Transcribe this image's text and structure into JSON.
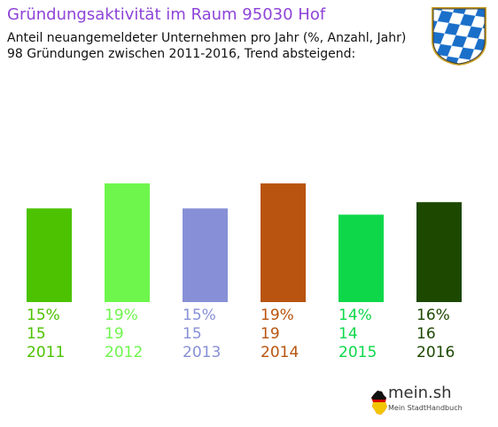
{
  "header": {
    "title": "Gründungsaktivität im Raum 95030 Hof",
    "subtitle_line1": "Anteil neuangemeldeter Unternehmen pro Jahr (%, Anzahl, Jahr)",
    "subtitle_line2": "98 Gründungen zwischen 2011-2016, Trend absteigend:"
  },
  "chart_data": {
    "type": "bar",
    "categories": [
      "2011",
      "2012",
      "2013",
      "2014",
      "2015",
      "2016"
    ],
    "values": [
      15,
      19,
      15,
      19,
      14,
      16
    ],
    "percent_labels": [
      "15%",
      "19%",
      "15%",
      "19%",
      "14%",
      "16%"
    ],
    "count_labels": [
      "15",
      "19",
      "15",
      "19",
      "14",
      "16"
    ],
    "colors": [
      "#4cc200",
      "#6ef64c",
      "#8790d6",
      "#b8540f",
      "#0ed84a",
      "#1c4800"
    ],
    "title": "Gründungsaktivität im Raum 95030 Hof",
    "xlabel": "",
    "ylabel": "",
    "grid": false,
    "legend": "none"
  },
  "brand": {
    "name": "mein.sh",
    "tagline": "Mein StadtHandbuch"
  },
  "icons": {
    "crest": "bavarian-lozenge-crest-icon",
    "brand_mark": "germany-map-icon"
  }
}
